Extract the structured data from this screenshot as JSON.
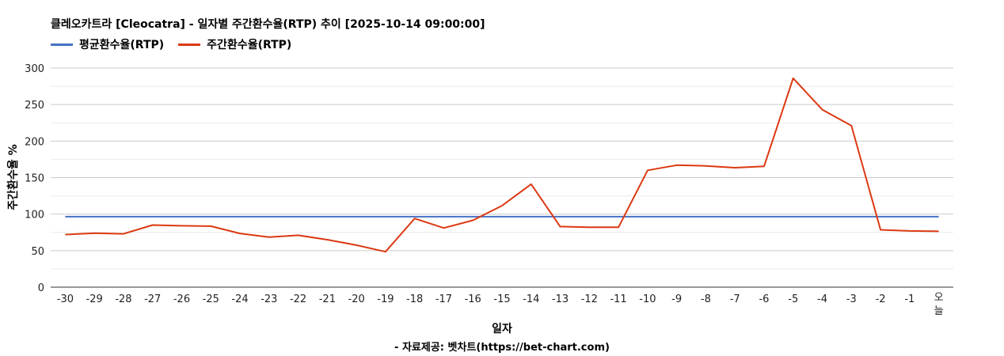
{
  "chart_data": {
    "type": "line",
    "title": "클레오카트라 [Cleocatra] - 일자별 주간환수율(RTP) 추이 [2025-10-14 09:00:00]",
    "xlabel": "일자",
    "ylabel": "주간환수율 %",
    "source": "- 자료제공: 벳차트(https://bet-chart.com)",
    "ylim": [
      0,
      300
    ],
    "yticks": [
      0,
      50,
      100,
      150,
      200,
      250,
      300
    ],
    "grid": true,
    "legend_position": "top-left",
    "categories": [
      "-30",
      "-29",
      "-28",
      "-27",
      "-26",
      "-25",
      "-24",
      "-23",
      "-22",
      "-21",
      "-20",
      "-19",
      "-18",
      "-17",
      "-16",
      "-15",
      "-14",
      "-13",
      "-12",
      "-11",
      "-10",
      "-9",
      "-8",
      "-7",
      "-6",
      "-5",
      "-4",
      "-3",
      "-2",
      "-1",
      "오늘"
    ],
    "series": [
      {
        "name": "평균환수율(RTP)",
        "color": "#4472C4",
        "values": [
          96.5,
          96.5,
          96.5,
          96.5,
          96.5,
          96.5,
          96.5,
          96.5,
          96.5,
          96.5,
          96.5,
          96.5,
          96.5,
          96.5,
          96.5,
          96.5,
          96.5,
          96.5,
          96.5,
          96.5,
          96.5,
          96.5,
          96.5,
          96.5,
          96.5,
          96.5,
          96.5,
          96.5,
          96.5,
          96.5,
          96.5
        ]
      },
      {
        "name": "주간환수율(RTP)",
        "color": "#DC3912",
        "values": [
          72,
          74,
          73,
          85,
          84,
          83.5,
          73.5,
          68.5,
          71,
          65,
          57.5,
          48.5,
          94,
          81,
          91.5,
          111.5,
          141,
          83,
          82,
          82,
          160,
          167,
          166,
          163.5,
          165.5,
          286,
          243,
          221,
          78.5,
          77,
          76.5
        ]
      }
    ]
  }
}
